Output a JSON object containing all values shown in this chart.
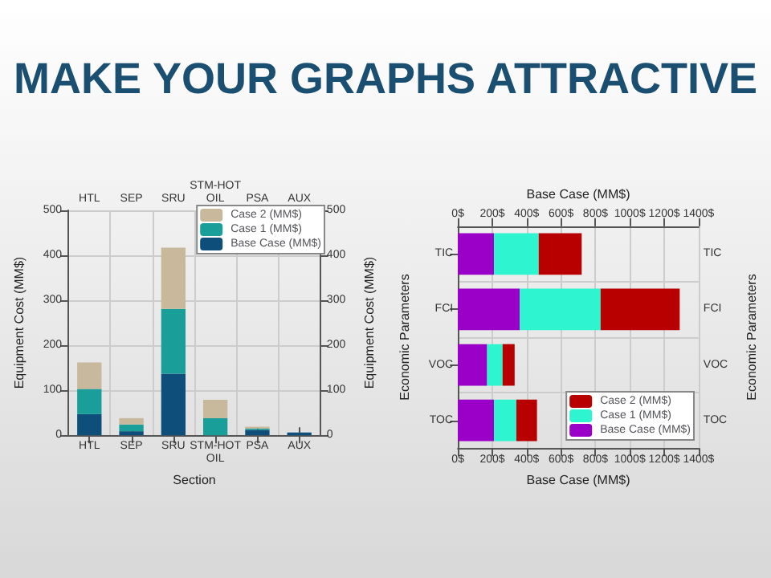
{
  "chart_data": [
    {
      "type": "bar",
      "title": "MAKE YOUR GRAPHS ATTRACTIVE",
      "stacked": true,
      "xlabel": "Section",
      "ylabel": "Equipment Cost (MM$)",
      "y2label": "Equipment Cost (MM$)",
      "categories": [
        "HTL",
        "SEP",
        "SRU",
        "STM-HOT OIL",
        "PSA",
        "AUX"
      ],
      "series": [
        {
          "name": "Base Case (MM$)",
          "color": "#0d4f7a",
          "values": [
            47,
            9,
            137,
            0,
            12,
            6
          ]
        },
        {
          "name": "Case 1 (MM$)",
          "color": "#1a9e9a",
          "values": [
            56,
            15,
            144,
            38,
            3,
            0
          ]
        },
        {
          "name": "Case 2 (MM$)",
          "color": "#c8b89c",
          "values": [
            59,
            14,
            136,
            41,
            4,
            0
          ]
        }
      ],
      "ylim": [
        0,
        500
      ],
      "yticks": [
        0,
        100,
        200,
        300,
        400,
        500
      ],
      "y2lim": [
        0,
        500
      ],
      "y2ticks": [
        0,
        100,
        200,
        300,
        400,
        500
      ],
      "grid": true,
      "legend": "top right"
    },
    {
      "type": "bar",
      "stacked": true,
      "orientation": "horizontal",
      "xlabel": "Base Case (MM$)",
      "x2label": "Base Case (MM$)",
      "ylabel": "Economic Parameters",
      "y2label": "Economic Parameters",
      "categories": [
        "TIC",
        "FCI",
        "VOC",
        "TOC"
      ],
      "series": [
        {
          "name": "Base Case (MM$)",
          "color": "#9a00c8",
          "values": [
            210,
            360,
            170,
            210
          ]
        },
        {
          "name": "Case 1 (MM$)",
          "color": "#2ef5d0",
          "values": [
            260,
            470,
            90,
            130
          ]
        },
        {
          "name": "Case 2 (MM$)",
          "color": "#b80000",
          "values": [
            250,
            460,
            70,
            120
          ]
        }
      ],
      "xlim": [
        0,
        1400
      ],
      "xticks": [
        {
          "value": 0,
          "label": "0$"
        },
        {
          "value": 200,
          "label": "200$"
        },
        {
          "value": 400,
          "label": "400$"
        },
        {
          "value": 600,
          "label": "600$"
        },
        {
          "value": 800,
          "label": "800$"
        },
        {
          "value": 1000,
          "label": "1000$"
        },
        {
          "value": 1200,
          "label": "1200$"
        },
        {
          "value": 1400,
          "label": "1400$"
        }
      ],
      "x2lim": [
        0,
        1400
      ],
      "x2ticks": [
        {
          "value": 0,
          "label": "0$"
        },
        {
          "value": 200,
          "label": "200$"
        },
        {
          "value": 400,
          "label": "400$"
        },
        {
          "value": 600,
          "label": "600$"
        },
        {
          "value": 800,
          "label": "800$"
        },
        {
          "value": 1000,
          "label": "1000$"
        },
        {
          "value": 1200,
          "label": "1200$"
        },
        {
          "value": 1400,
          "label": "1400$"
        }
      ],
      "grid": true,
      "legend": "bottom right"
    }
  ]
}
